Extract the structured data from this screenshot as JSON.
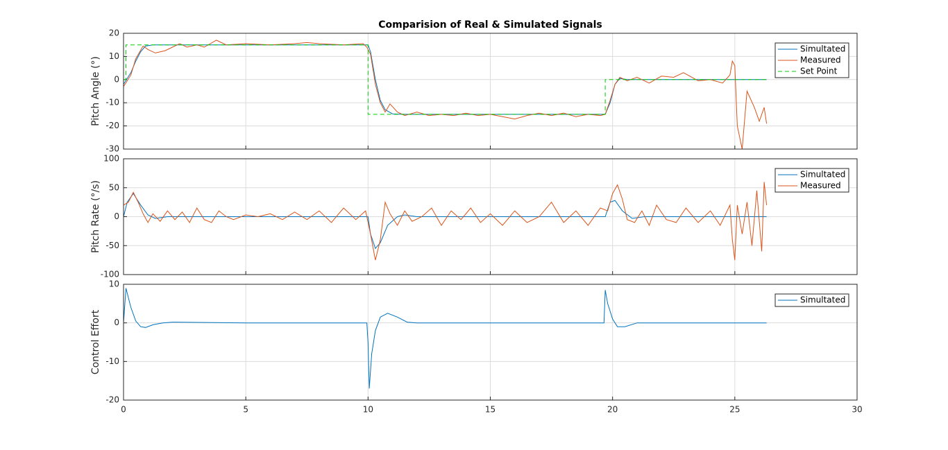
{
  "chart_data": [
    {
      "type": "line",
      "title": "Comparision of Real & Simulated Signals",
      "y_label": "Pitch Angle (°)",
      "xlim": [
        0,
        30
      ],
      "xticks": [
        0,
        5,
        10,
        15,
        20,
        25,
        30
      ],
      "ylim": [
        -30,
        20
      ],
      "yticks": [
        -30,
        -20,
        -10,
        0,
        10,
        20
      ],
      "grid": true,
      "legend": "northeast",
      "series": [
        {
          "name": "Simultated",
          "color": "#0072bd",
          "linestyle": "solid",
          "x": [
            0,
            0.3,
            0.5,
            0.7,
            0.9,
            1.2,
            3,
            6,
            9,
            10,
            10.1,
            10.3,
            10.5,
            10.7,
            11,
            11.5,
            14,
            17,
            19.7,
            19.9,
            20.1,
            20.3,
            20.6,
            23,
            26.3
          ],
          "values": [
            -2,
            3,
            8,
            12,
            14.5,
            15,
            15,
            15,
            15,
            15,
            12,
            0,
            -9,
            -13,
            -14.8,
            -15,
            -15,
            -15,
            -15,
            -10,
            -2,
            0.5,
            0,
            0,
            0
          ]
        },
        {
          "name": "Measured",
          "color": "#d95319",
          "linestyle": "solid",
          "x": [
            0,
            0.3,
            0.5,
            0.8,
            1.0,
            1.3,
            1.7,
            2,
            2.3,
            2.6,
            3,
            3.3,
            3.8,
            4.2,
            5,
            6,
            7,
            7.5,
            8,
            9,
            9.8,
            9.95,
            10.1,
            10.3,
            10.5,
            10.7,
            10.9,
            11.2,
            11.5,
            12,
            12.5,
            13,
            13.5,
            14,
            14.5,
            15,
            15.5,
            16,
            16.5,
            17,
            17.5,
            18,
            18.5,
            19,
            19.5,
            19.7,
            19.9,
            20.1,
            20.3,
            20.6,
            21,
            21.5,
            22,
            22.5,
            22.9,
            23.5,
            24,
            24.5,
            24.8,
            24.9,
            25.0,
            25.1,
            25.3,
            25.5,
            25.8,
            26,
            26.2,
            26.3
          ],
          "values": [
            -3,
            2,
            9,
            14.5,
            13,
            11.5,
            12.5,
            14,
            15.5,
            14,
            15,
            14,
            17,
            15,
            15.5,
            15,
            15.5,
            16,
            15.5,
            15,
            15.5,
            14,
            11,
            -2,
            -10,
            -14,
            -10.5,
            -14,
            -15.5,
            -14,
            -15.5,
            -15,
            -15.5,
            -14.5,
            -15.5,
            -15,
            -16,
            -17,
            -15.5,
            -14.5,
            -15.5,
            -14.5,
            -16,
            -15,
            -15.5,
            -15,
            -9,
            -2,
            1,
            -0.5,
            1,
            -1.5,
            1.5,
            1,
            3,
            -0.5,
            0,
            -1.5,
            2,
            8,
            6,
            -20,
            -30,
            -5,
            -12,
            -18,
            -12,
            -19
          ]
        },
        {
          "name": "Set Point",
          "color": "#00cc00",
          "linestyle": "dashed",
          "x": [
            0,
            0.1,
            0.1,
            10,
            10,
            19.7,
            19.7,
            26.3
          ],
          "values": [
            0,
            0,
            15,
            15,
            -15,
            -15,
            0,
            0
          ]
        }
      ]
    },
    {
      "type": "line",
      "y_label": "Pitch Rate (°/s)",
      "xlim": [
        0,
        30
      ],
      "xticks": [
        0,
        5,
        10,
        15,
        20,
        25,
        30
      ],
      "ylim": [
        -100,
        100
      ],
      "yticks": [
        -100,
        -50,
        0,
        50,
        100
      ],
      "grid": true,
      "legend": "northeast",
      "series": [
        {
          "name": "Simultated",
          "color": "#0072bd",
          "linestyle": "solid",
          "x": [
            0,
            0.15,
            0.4,
            0.7,
            1,
            1.3,
            1.8,
            5,
            10,
            10.1,
            10.3,
            10.5,
            10.8,
            11.2,
            11.5,
            12,
            16,
            19.7,
            19.9,
            20.1,
            20.4,
            20.8,
            21.3,
            26.3
          ],
          "values": [
            0,
            25,
            40,
            20,
            3,
            -3,
            0,
            0,
            0,
            -30,
            -55,
            -45,
            -15,
            0,
            3,
            0,
            0,
            0,
            25,
            28,
            10,
            -3,
            0,
            0
          ]
        },
        {
          "name": "Measured",
          "color": "#d95319",
          "linestyle": "solid",
          "x": [
            0,
            0.2,
            0.4,
            0.6,
            0.8,
            1,
            1.2,
            1.5,
            1.8,
            2.1,
            2.4,
            2.7,
            3,
            3.3,
            3.6,
            3.9,
            4.2,
            4.5,
            5,
            5.5,
            6,
            6.5,
            7,
            7.5,
            8,
            8.5,
            9,
            9.5,
            9.9,
            10.1,
            10.3,
            10.5,
            10.7,
            10.9,
            11.2,
            11.5,
            11.8,
            12.2,
            12.6,
            13,
            13.4,
            13.8,
            14.2,
            14.6,
            15,
            15.5,
            16,
            16.5,
            17,
            17.5,
            18,
            18.5,
            19,
            19.5,
            19.8,
            20,
            20.2,
            20.4,
            20.6,
            20.9,
            21.2,
            21.5,
            21.8,
            22.2,
            22.6,
            23,
            23.5,
            24,
            24.4,
            24.8,
            24.9,
            25,
            25.1,
            25.3,
            25.5,
            25.7,
            25.9,
            26.1,
            26.2,
            26.3
          ],
          "values": [
            20,
            25,
            42,
            25,
            5,
            -10,
            5,
            -8,
            10,
            -5,
            8,
            -10,
            15,
            -5,
            -10,
            10,
            0,
            -5,
            3,
            0,
            5,
            -5,
            8,
            -5,
            10,
            -10,
            15,
            -5,
            10,
            -30,
            -75,
            -40,
            25,
            5,
            -15,
            10,
            -8,
            0,
            15,
            -15,
            10,
            -5,
            15,
            -10,
            5,
            -15,
            10,
            -10,
            0,
            25,
            -10,
            10,
            -15,
            15,
            10,
            40,
            55,
            30,
            -5,
            -10,
            10,
            -15,
            20,
            -5,
            -10,
            15,
            -10,
            10,
            -15,
            20,
            -40,
            -75,
            20,
            -30,
            25,
            -50,
            45,
            -60,
            60,
            20
          ]
        }
      ]
    },
    {
      "type": "line",
      "y_label": "Control Effort",
      "xlim": [
        0,
        30
      ],
      "xticks": [
        0,
        5,
        10,
        15,
        20,
        25,
        30
      ],
      "ylim": [
        -20,
        10
      ],
      "yticks": [
        -20,
        -10,
        0,
        10
      ],
      "grid": true,
      "legend": "northeast",
      "series": [
        {
          "name": "Simultated",
          "color": "#0072bd",
          "linestyle": "solid",
          "x": [
            0,
            0.1,
            0.3,
            0.5,
            0.7,
            0.9,
            1.2,
            1.6,
            2,
            5,
            9.95,
            10,
            10.05,
            10.15,
            10.3,
            10.5,
            10.8,
            11.2,
            11.6,
            12,
            19.65,
            19.7,
            19.8,
            20,
            20.2,
            20.5,
            21,
            26.3
          ],
          "values": [
            0,
            9,
            4,
            0.5,
            -1,
            -1.2,
            -0.5,
            0,
            0.2,
            0,
            0,
            -5,
            -17,
            -8,
            -2,
            1.5,
            2.5,
            1.5,
            0.2,
            0,
            0,
            8.5,
            5,
            1,
            -1,
            -1,
            0,
            0
          ]
        }
      ]
    }
  ]
}
